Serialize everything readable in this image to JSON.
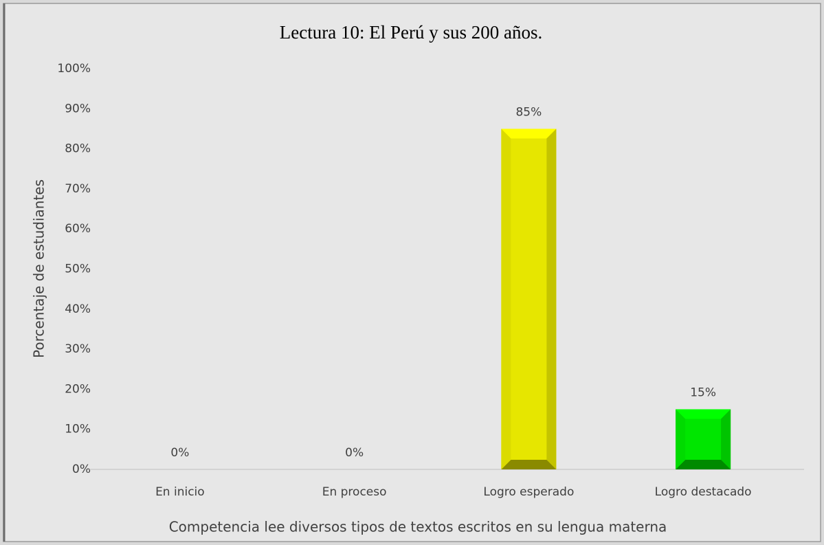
{
  "chart_data": {
    "type": "bar",
    "title": "Lectura 10: El Perú y sus 200 años.",
    "xlabel": "Competencia lee diversos tipos de textos escritos en su lengua materna",
    "ylabel": "Porcentaje de estudiantes",
    "categories": [
      "En inicio",
      "En proceso",
      "Logro esperado",
      "Logro destacado"
    ],
    "values": [
      0,
      0,
      85,
      15
    ],
    "value_labels": [
      "0%",
      "0%",
      "85%",
      "15%"
    ],
    "colors": [
      "#e6e600",
      "#e6e600",
      "#e6e600",
      "#00e600"
    ],
    "ylim": [
      0,
      100
    ],
    "yticks": [
      {
        "value": 0,
        "label": "0%"
      },
      {
        "value": 10,
        "label": "10%"
      },
      {
        "value": 20,
        "label": "20%"
      },
      {
        "value": 30,
        "label": "30%"
      },
      {
        "value": 40,
        "label": "40%"
      },
      {
        "value": 50,
        "label": "50%"
      },
      {
        "value": 60,
        "label": "60%"
      },
      {
        "value": 70,
        "label": "70%"
      },
      {
        "value": 80,
        "label": "80%"
      },
      {
        "value": 90,
        "label": "90%"
      },
      {
        "value": 100,
        "label": "100%"
      }
    ],
    "grid": false
  }
}
